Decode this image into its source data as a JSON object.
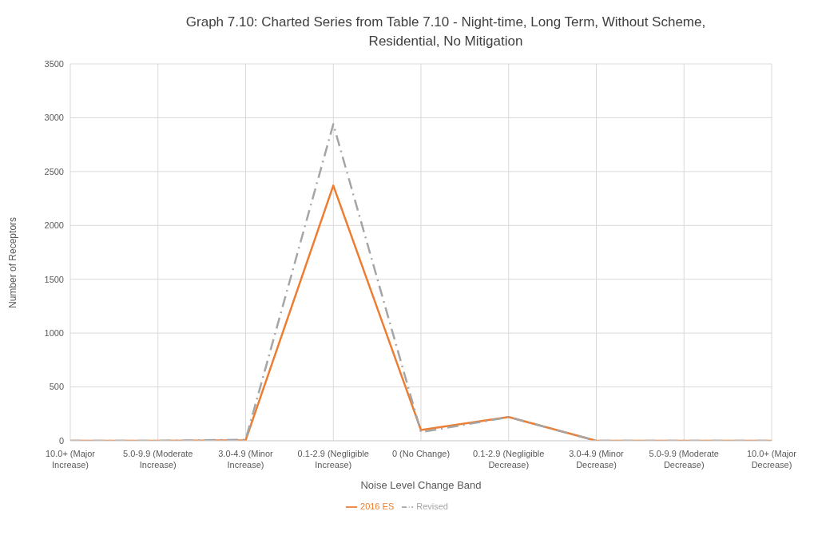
{
  "chart_data": {
    "type": "line",
    "title": "Graph 7.10: Charted Series from Table 7.10 - Night-time, Long Term, Without Scheme, Residential, No Mitigation",
    "xlabel": "Noise Level Change Band",
    "ylabel": "Number of Receptors",
    "categories": [
      "10.0+ (Major Increase)",
      "5.0-9.9 (Moderate Increase)",
      "3.0-4.9 (Minor Increase)",
      "0.1-2.9 (Negligible Increase)",
      "0 (No Change)",
      "0.1-2.9 (Negligible Decrease)",
      "3.0-4.9 (Minor Decrease)",
      "5.0-9.9 (Moderate Decrease)",
      "10.0+ (Major Decrease)"
    ],
    "series": [
      {
        "name": "2016 ES",
        "color": "#ed7d31",
        "line_style": "solid",
        "values": [
          0,
          0,
          5,
          2370,
          100,
          220,
          0,
          0,
          0
        ]
      },
      {
        "name": "Revised",
        "color": "#a5a5a5",
        "line_style": "dashed",
        "values": [
          0,
          0,
          10,
          2940,
          80,
          220,
          0,
          0,
          0
        ]
      }
    ],
    "ylim": [
      0,
      3500
    ],
    "yticks": [
      0,
      500,
      1000,
      1500,
      2000,
      2500,
      3000,
      3500
    ],
    "grid": true,
    "legend": "bottom",
    "marker": "none"
  }
}
